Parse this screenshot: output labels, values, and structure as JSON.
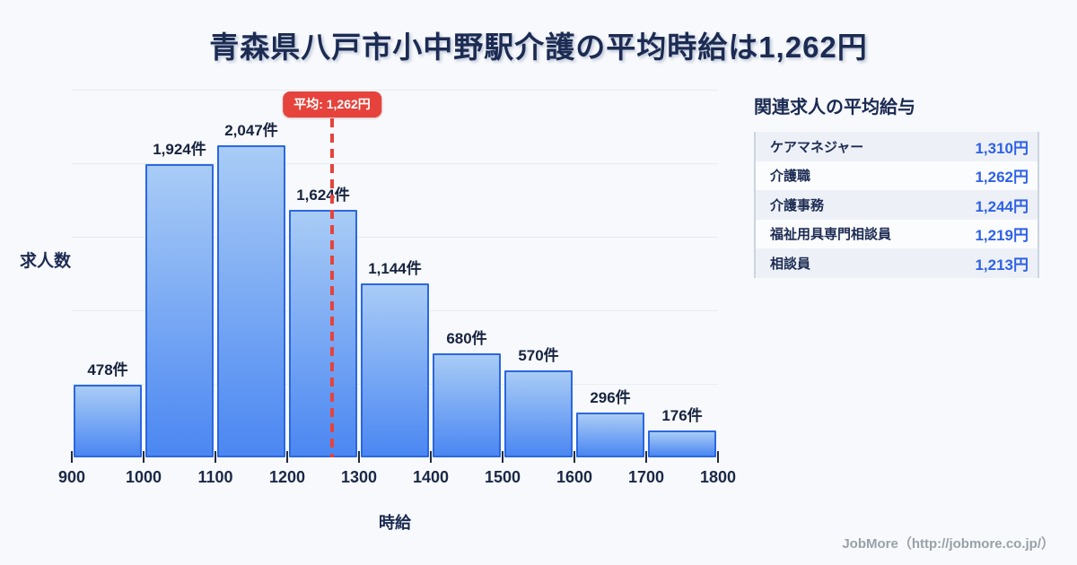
{
  "page": {
    "title": "青森県八戸市小中野駅介護の平均時給は1,262円",
    "background_color": "#f7f9fc",
    "footer_credit": "JobMore（http://jobmore.co.jp/）"
  },
  "chart_data": {
    "type": "bar",
    "subtype": "histogram",
    "title": "青森県八戸市小中野駅介護の平均時給は1,262円",
    "xlabel": "時給",
    "ylabel": "求人数",
    "bin_edges": [
      900,
      1000,
      1100,
      1200,
      1300,
      1400,
      1500,
      1600,
      1700,
      1800
    ],
    "categories": [
      "900-1000",
      "1000-1100",
      "1100-1200",
      "1200-1300",
      "1300-1400",
      "1400-1500",
      "1500-1600",
      "1600-1700",
      "1700-1800"
    ],
    "values": [
      478,
      1924,
      2047,
      1624,
      1144,
      680,
      570,
      296,
      176
    ],
    "value_labels": [
      "478件",
      "1,924件",
      "2,047件",
      "1,624件",
      "1,144件",
      "680件",
      "570件",
      "296件",
      "176件"
    ],
    "average": {
      "value": 1262,
      "label": "平均: 1,262円"
    },
    "ylim": [
      0,
      2412
    ],
    "xlim": [
      900,
      1800
    ],
    "grid": true,
    "legend": "none",
    "bar_fill_top": "#a9ccf6",
    "bar_fill_bottom": "#4b87f2",
    "bar_border_color": "#2b67e0",
    "average_line_color": "#e5433c",
    "label_color": "#17233f"
  },
  "related_jobs": {
    "heading": "関連求人の平均給与",
    "value_color": "#2e61e8",
    "rows": [
      {
        "label": "ケアマネジャー",
        "value": "1,310円"
      },
      {
        "label": "介護職",
        "value": "1,262円"
      },
      {
        "label": "介護事務",
        "value": "1,244円"
      },
      {
        "label": "福祉用具専門相談員",
        "value": "1,219円"
      },
      {
        "label": "相談員",
        "value": "1,213円"
      }
    ]
  }
}
